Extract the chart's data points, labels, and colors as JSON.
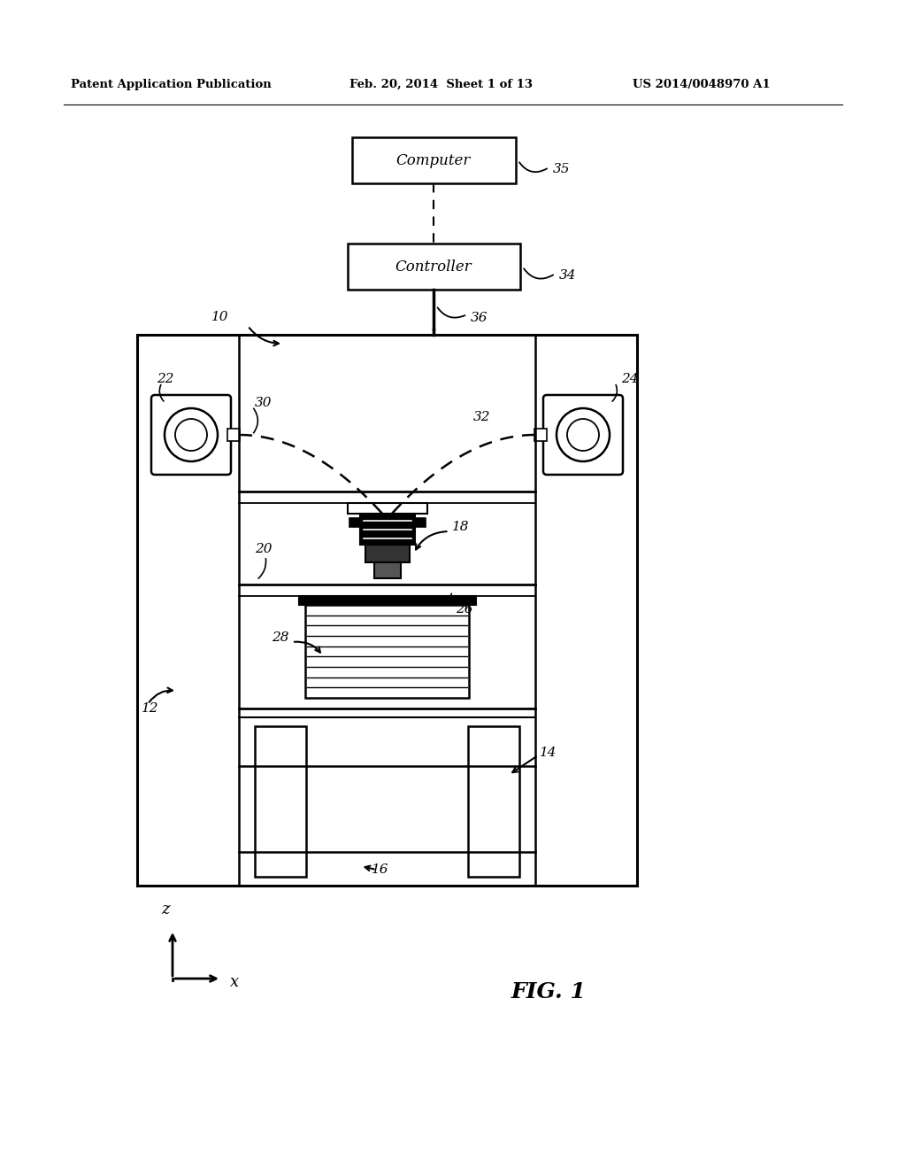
{
  "bg_color": "#ffffff",
  "header_text1": "Patent Application Publication",
  "header_text2": "Feb. 20, 2014  Sheet 1 of 13",
  "header_text3": "US 2014/0048970 A1",
  "fig_label": "FIG. 1",
  "computer_label": "Computer",
  "controller_label": "Controller",
  "page_width": 1.0,
  "page_height": 1.0
}
